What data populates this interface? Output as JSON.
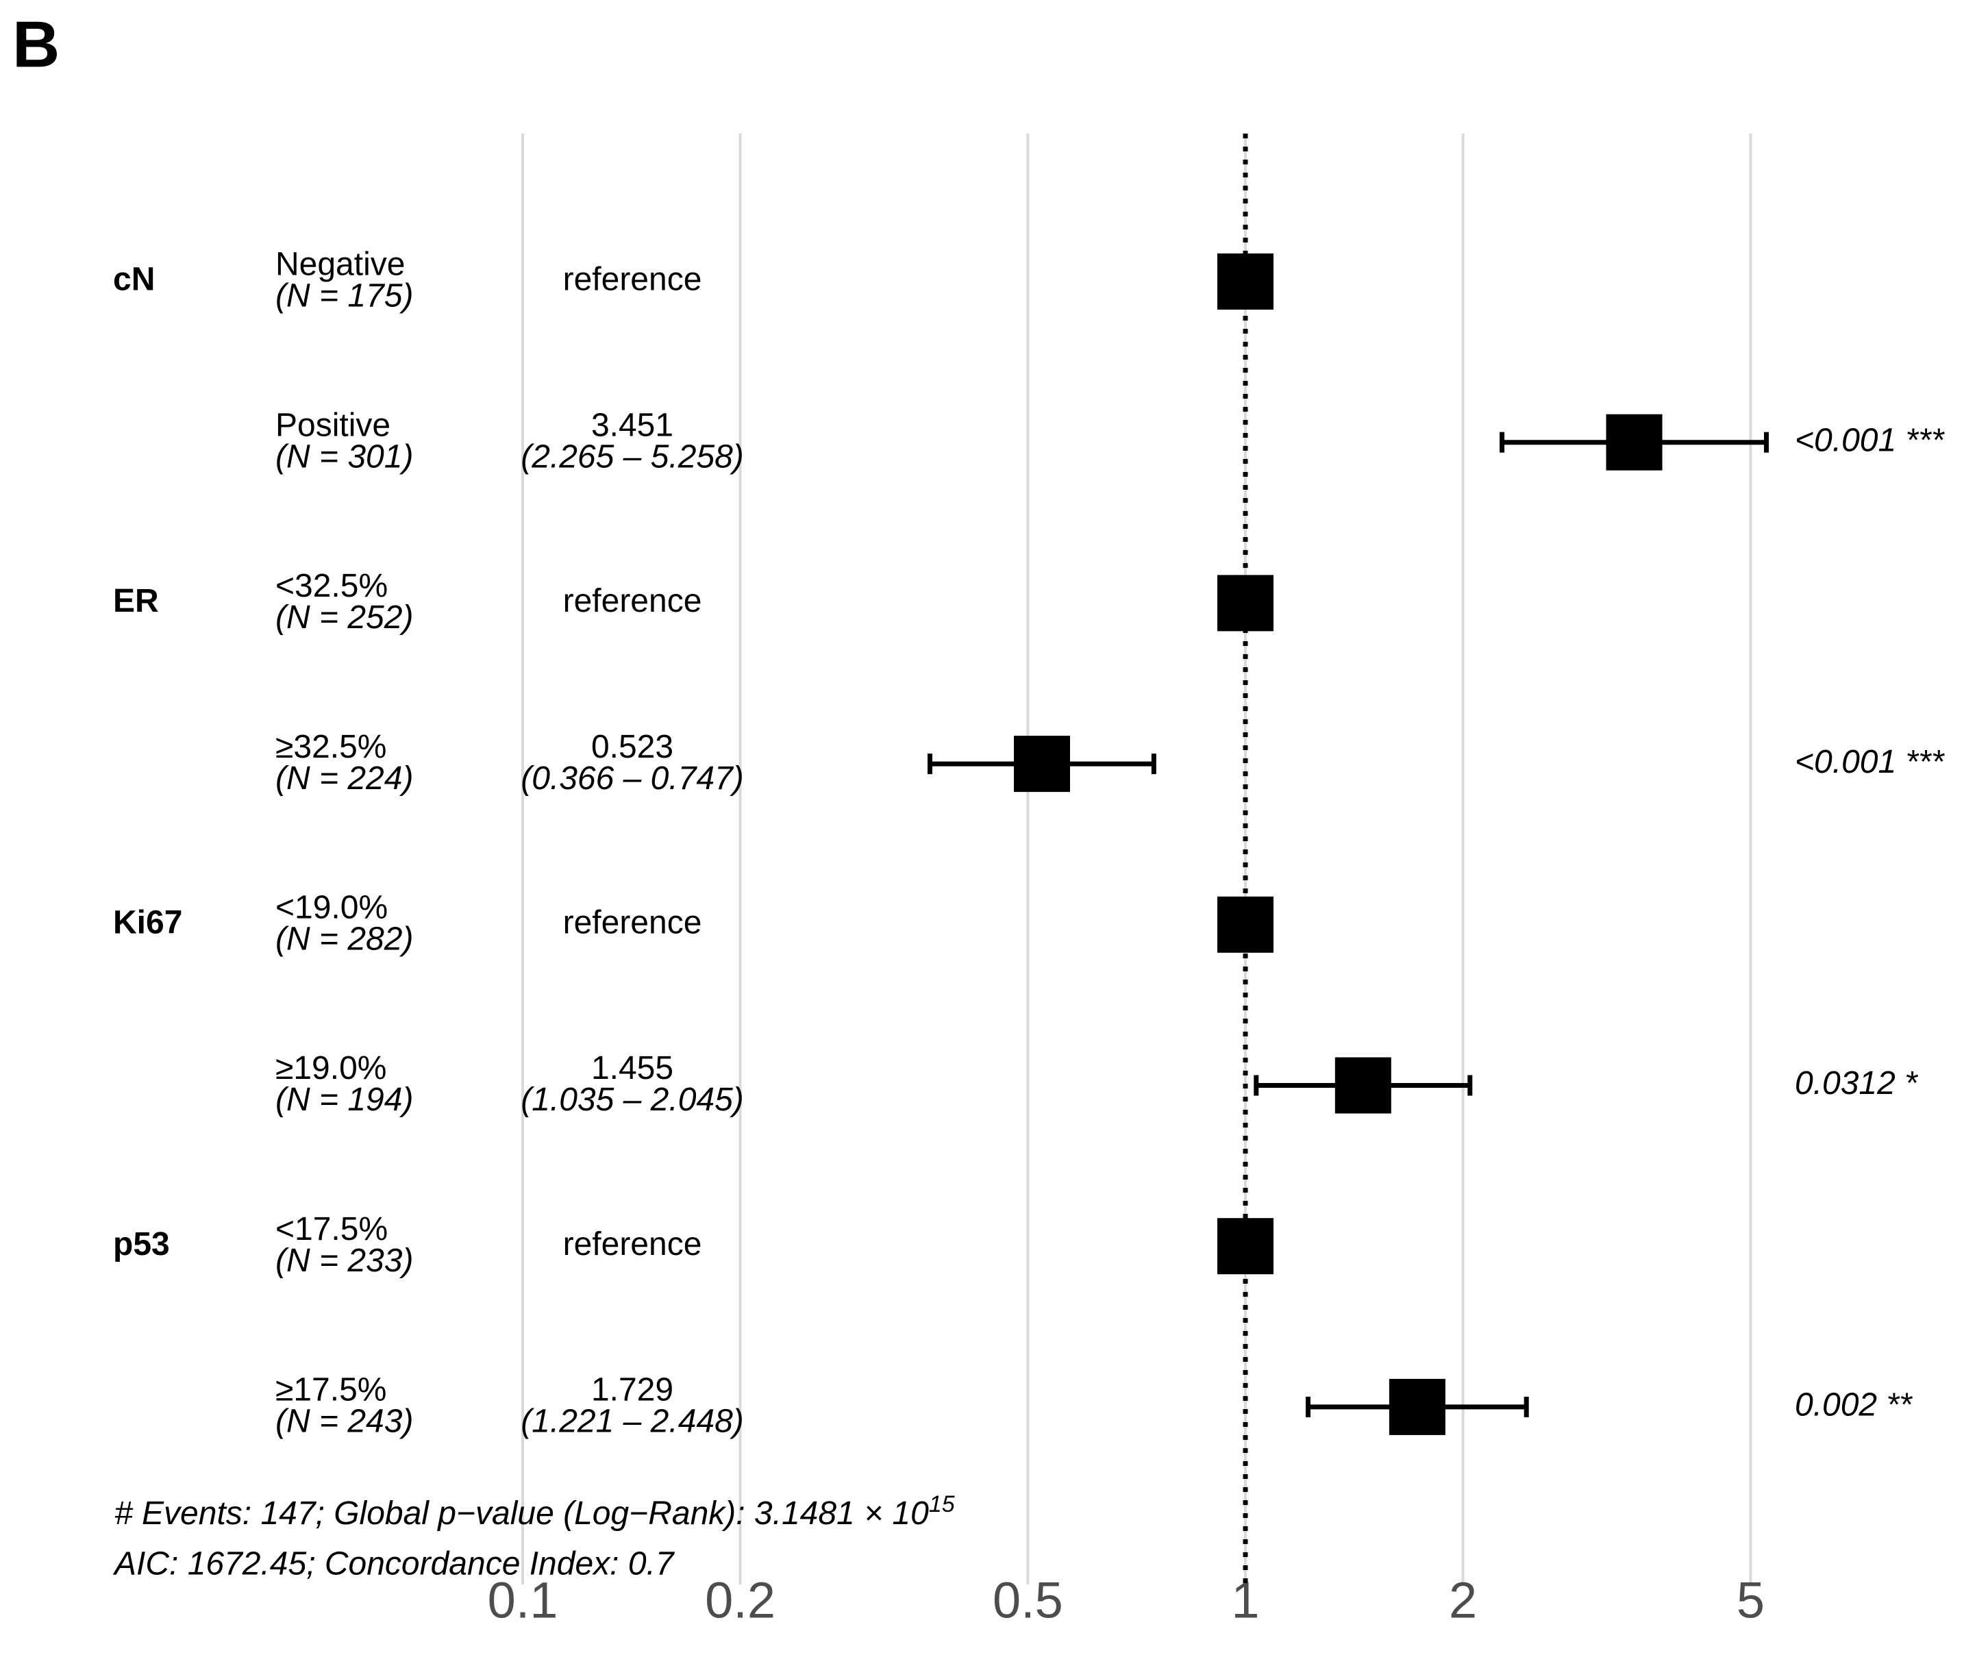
{
  "panel_label": "B",
  "chart_data": {
    "type": "forest",
    "xscale": "log",
    "xlim": [
      0.1,
      10
    ],
    "xticks": [
      0.1,
      0.2,
      0.5,
      1,
      2,
      5
    ],
    "grid": true,
    "reference_line": 1,
    "color": "#000000",
    "groups": [
      {
        "name": "cN",
        "levels": [
          {
            "level": "Negative",
            "n": "(N = 175)",
            "hr": 1,
            "hr_label": "reference"
          },
          {
            "level": "Positive",
            "n": "(N = 301)",
            "hr": 3.451,
            "ci_low": 2.265,
            "ci_high": 5.258,
            "ci_label": "(2.265 – 5.258)",
            "p": "<0.001 ***"
          }
        ]
      },
      {
        "name": "ER",
        "levels": [
          {
            "level": "<32.5%",
            "n": "(N = 252)",
            "hr": 1,
            "hr_label": "reference"
          },
          {
            "level": "≥32.5%",
            "n": "(N = 224)",
            "hr": 0.523,
            "ci_low": 0.366,
            "ci_high": 0.747,
            "ci_label": "(0.366 – 0.747)",
            "p": "<0.001 ***"
          }
        ]
      },
      {
        "name": "Ki67",
        "levels": [
          {
            "level": "<19.0%",
            "n": "(N = 282)",
            "hr": 1,
            "hr_label": "reference"
          },
          {
            "level": "≥19.0%",
            "n": "(N = 194)",
            "hr": 1.455,
            "ci_low": 1.035,
            "ci_high": 2.045,
            "ci_label": "(1.035 – 2.045)",
            "p": "0.0312 *"
          }
        ]
      },
      {
        "name": "p53",
        "levels": [
          {
            "level": "<17.5%",
            "n": "(N = 233)",
            "hr": 1,
            "hr_label": "reference"
          },
          {
            "level": "≥17.5%",
            "n": "(N = 243)",
            "hr": 1.729,
            "ci_low": 1.221,
            "ci_high": 2.448,
            "ci_label": "(1.221 – 2.448)",
            "p": "0.002 **"
          }
        ]
      }
    ],
    "footnote_1": "# Events: 147; Global p−value (Log−Rank): 3.1481 × 10",
    "footnote_1_exponent": "15",
    "footnote_2": "AIC: 1672.45; Concordance Index: 0.7"
  }
}
